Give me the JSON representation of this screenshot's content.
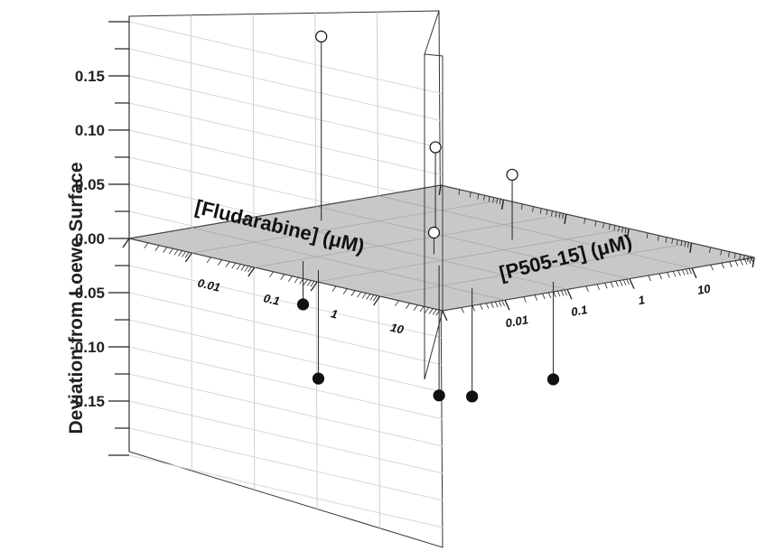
{
  "chart_data": {
    "type": "scatter",
    "subtype": "3d-stem",
    "ylabel": "Deviation from Loewe Surface",
    "xlabel": "[Fludarabine] (μM)",
    "zlabel": "[P505-15] (μM)",
    "y_ticks": [
      "0.15",
      "0.10",
      "0.05",
      "0.00",
      "-0.05",
      "-0.10",
      "-0.15"
    ],
    "ylim": [
      -0.2,
      0.2
    ],
    "x_ticks": [
      "0.01",
      "0.1",
      "1",
      "10"
    ],
    "z_ticks": [
      "0.01",
      "0.1",
      "1",
      "10"
    ],
    "x_scale": "log",
    "z_scale": "log",
    "floor_color": "#c8c8c8",
    "points": [
      {
        "fludarabine": 0.004,
        "p505_15": 0.3,
        "deviation": 0.17,
        "fill": "open"
      },
      {
        "fludarabine": 0.08,
        "p505_15": 1,
        "deviation": 0.08,
        "fill": "open"
      },
      {
        "fludarabine": 0.12,
        "p505_15": 0.005,
        "deviation": -0.04,
        "fill": "filled"
      },
      {
        "fludarabine": 0.35,
        "p505_15": 0.003,
        "deviation": -0.1,
        "fill": "filled"
      },
      {
        "fludarabine": 0.5,
        "p505_15": 0.15,
        "deviation": 0.02,
        "fill": "open"
      },
      {
        "fludarabine": 1.5,
        "p505_15": 0.06,
        "deviation": -0.12,
        "fill": "filled"
      },
      {
        "fludarabine": 0.45,
        "p505_15": 3,
        "deviation": 0.06,
        "fill": "open"
      },
      {
        "fludarabine": 20,
        "p505_15": 0.015,
        "deviation": -0.1,
        "fill": "filled"
      },
      {
        "fludarabine": 40,
        "p505_15": 0.15,
        "deviation": -0.09,
        "fill": "filled"
      }
    ]
  }
}
